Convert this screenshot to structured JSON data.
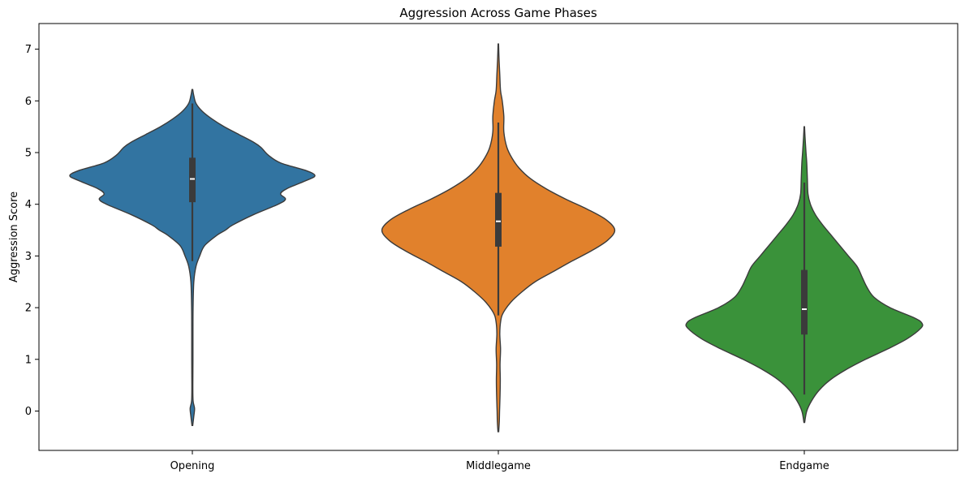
{
  "chart_data": {
    "type": "violin",
    "title": "Aggression Across Game Phases",
    "xlabel": "",
    "ylabel": "Aggression Score",
    "ylim": [
      -0.75,
      7.5
    ],
    "yticks": [
      0,
      1,
      2,
      3,
      4,
      5,
      6,
      7
    ],
    "legend": "none",
    "grid": false,
    "categories": [
      "Opening",
      "Middlegame",
      "Endgame"
    ],
    "series": [
      {
        "category": "Opening",
        "color": "#3274a1",
        "median": 4.49,
        "q1": 4.04,
        "q3": 4.9,
        "whisker_low": 2.9,
        "whisker_high": 5.95,
        "min": -0.28,
        "max": 6.22,
        "density": [
          [
            -0.28,
            0.003
          ],
          [
            -0.1,
            0.012
          ],
          [
            0.05,
            0.018
          ],
          [
            0.2,
            0.006
          ],
          [
            0.5,
            0.004
          ],
          [
            1.0,
            0.005
          ],
          [
            1.5,
            0.005
          ],
          [
            2.0,
            0.006
          ],
          [
            2.5,
            0.012
          ],
          [
            2.8,
            0.03
          ],
          [
            3.0,
            0.06
          ],
          [
            3.2,
            0.1
          ],
          [
            3.4,
            0.2
          ],
          [
            3.5,
            0.27
          ],
          [
            3.6,
            0.33
          ],
          [
            3.8,
            0.5
          ],
          [
            4.0,
            0.7
          ],
          [
            4.1,
            0.76
          ],
          [
            4.2,
            0.72
          ],
          [
            4.3,
            0.77
          ],
          [
            4.45,
            0.92
          ],
          [
            4.55,
            1.0
          ],
          [
            4.65,
            0.93
          ],
          [
            4.8,
            0.72
          ],
          [
            4.95,
            0.62
          ],
          [
            5.1,
            0.56
          ],
          [
            5.2,
            0.5
          ],
          [
            5.35,
            0.38
          ],
          [
            5.5,
            0.26
          ],
          [
            5.65,
            0.16
          ],
          [
            5.8,
            0.08
          ],
          [
            5.95,
            0.03
          ],
          [
            6.1,
            0.012
          ],
          [
            6.22,
            0.003
          ]
        ]
      },
      {
        "category": "Middlegame",
        "color": "#e1812c",
        "median": 3.67,
        "q1": 3.18,
        "q3": 4.22,
        "whisker_low": 1.85,
        "whisker_high": 5.58,
        "min": -0.4,
        "max": 7.1,
        "density": [
          [
            -0.4,
            0.003
          ],
          [
            -0.2,
            0.008
          ],
          [
            0.0,
            0.01
          ],
          [
            0.3,
            0.014
          ],
          [
            0.6,
            0.016
          ],
          [
            0.9,
            0.014
          ],
          [
            1.2,
            0.018
          ],
          [
            1.5,
            0.012
          ],
          [
            1.75,
            0.02
          ],
          [
            1.9,
            0.04
          ],
          [
            2.1,
            0.1
          ],
          [
            2.3,
            0.19
          ],
          [
            2.5,
            0.3
          ],
          [
            2.7,
            0.45
          ],
          [
            2.9,
            0.6
          ],
          [
            3.1,
            0.76
          ],
          [
            3.3,
            0.89
          ],
          [
            3.5,
            0.95
          ],
          [
            3.7,
            0.88
          ],
          [
            3.9,
            0.73
          ],
          [
            4.1,
            0.55
          ],
          [
            4.3,
            0.39
          ],
          [
            4.5,
            0.26
          ],
          [
            4.7,
            0.17
          ],
          [
            4.9,
            0.11
          ],
          [
            5.1,
            0.07
          ],
          [
            5.4,
            0.045
          ],
          [
            5.7,
            0.045
          ],
          [
            6.0,
            0.032
          ],
          [
            6.2,
            0.018
          ],
          [
            6.5,
            0.012
          ],
          [
            6.8,
            0.006
          ],
          [
            7.1,
            0.002
          ]
        ]
      },
      {
        "category": "Endgame",
        "color": "#3a923a",
        "median": 1.97,
        "q1": 1.48,
        "q3": 2.73,
        "whisker_low": 0.32,
        "whisker_high": 4.42,
        "min": -0.22,
        "max": 5.5,
        "density": [
          [
            -0.22,
            0.003
          ],
          [
            0.0,
            0.02
          ],
          [
            0.2,
            0.06
          ],
          [
            0.4,
            0.12
          ],
          [
            0.6,
            0.21
          ],
          [
            0.8,
            0.34
          ],
          [
            1.0,
            0.5
          ],
          [
            1.2,
            0.68
          ],
          [
            1.4,
            0.84
          ],
          [
            1.6,
            0.95
          ],
          [
            1.7,
            0.96
          ],
          [
            1.8,
            0.9
          ],
          [
            2.0,
            0.7
          ],
          [
            2.2,
            0.57
          ],
          [
            2.4,
            0.51
          ],
          [
            2.6,
            0.47
          ],
          [
            2.8,
            0.43
          ],
          [
            3.0,
            0.36
          ],
          [
            3.2,
            0.29
          ],
          [
            3.4,
            0.22
          ],
          [
            3.6,
            0.15
          ],
          [
            3.8,
            0.09
          ],
          [
            4.0,
            0.05
          ],
          [
            4.2,
            0.03
          ],
          [
            4.5,
            0.025
          ],
          [
            4.8,
            0.02
          ],
          [
            5.0,
            0.014
          ],
          [
            5.3,
            0.006
          ],
          [
            5.5,
            0.002
          ]
        ]
      }
    ]
  }
}
